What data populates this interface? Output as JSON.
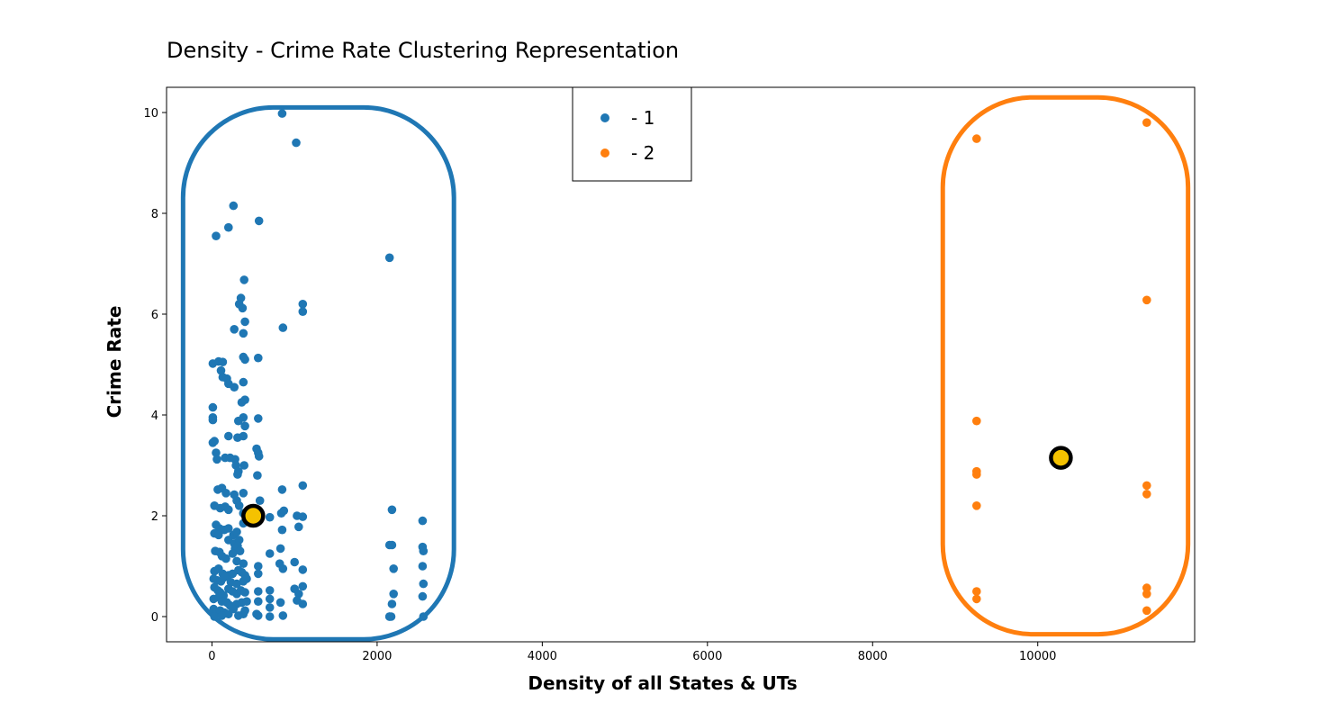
{
  "chart_data": {
    "type": "scatter",
    "title": "Density - Crime Rate Clustering Representation",
    "xlabel": "Density of all States & UTs",
    "ylabel": "Crime Rate",
    "xlim": [
      -550,
      11900
    ],
    "ylim": [
      -0.5,
      10.5
    ],
    "xticks": [
      0,
      2000,
      4000,
      6000,
      8000,
      10000
    ],
    "yticks": [
      0,
      2,
      4,
      6,
      8,
      10
    ],
    "grid": false,
    "legend_position": "top-center",
    "series": [
      {
        "name": "-  1",
        "color": "#1f77b4",
        "points": [
          [
            850,
            9.98
          ],
          [
            1020,
            9.4
          ],
          [
            2150,
            7.12
          ],
          [
            260,
            8.15
          ],
          [
            200,
            7.72
          ],
          [
            570,
            7.85
          ],
          [
            50,
            7.55
          ],
          [
            390,
            6.68
          ],
          [
            350,
            6.32
          ],
          [
            330,
            6.2
          ],
          [
            370,
            6.12
          ],
          [
            400,
            5.85
          ],
          [
            270,
            5.7
          ],
          [
            380,
            5.62
          ],
          [
            860,
            5.73
          ],
          [
            1100,
            6.2
          ],
          [
            1100,
            6.05
          ],
          [
            10,
            5.02
          ],
          [
            80,
            5.06
          ],
          [
            130,
            5.05
          ],
          [
            110,
            4.88
          ],
          [
            130,
            4.75
          ],
          [
            180,
            4.72
          ],
          [
            200,
            4.62
          ],
          [
            270,
            4.55
          ],
          [
            380,
            5.15
          ],
          [
            400,
            5.1
          ],
          [
            560,
            5.13
          ],
          [
            380,
            4.65
          ],
          [
            400,
            4.3
          ],
          [
            360,
            4.25
          ],
          [
            10,
            4.15
          ],
          [
            10,
            3.95
          ],
          [
            10,
            3.9
          ],
          [
            320,
            3.88
          ],
          [
            380,
            3.95
          ],
          [
            560,
            3.93
          ],
          [
            400,
            3.78
          ],
          [
            10,
            3.45
          ],
          [
            30,
            3.48
          ],
          [
            50,
            3.25
          ],
          [
            60,
            3.12
          ],
          [
            160,
            3.15
          ],
          [
            200,
            3.58
          ],
          [
            310,
            3.55
          ],
          [
            380,
            3.58
          ],
          [
            220,
            3.15
          ],
          [
            280,
            3.12
          ],
          [
            290,
            3.0
          ],
          [
            320,
            2.88
          ],
          [
            310,
            2.82
          ],
          [
            390,
            3.0
          ],
          [
            540,
            3.33
          ],
          [
            560,
            3.25
          ],
          [
            570,
            3.18
          ],
          [
            550,
            2.8
          ],
          [
            70,
            2.52
          ],
          [
            120,
            2.55
          ],
          [
            170,
            2.45
          ],
          [
            270,
            2.42
          ],
          [
            380,
            2.45
          ],
          [
            580,
            2.3
          ],
          [
            850,
            2.52
          ],
          [
            1100,
            2.6
          ],
          [
            30,
            2.2
          ],
          [
            100,
            2.15
          ],
          [
            160,
            2.18
          ],
          [
            200,
            2.12
          ],
          [
            300,
            2.3
          ],
          [
            330,
            2.2
          ],
          [
            380,
            2.05
          ],
          [
            450,
            2.1
          ],
          [
            700,
            1.97
          ],
          [
            840,
            2.05
          ],
          [
            870,
            2.1
          ],
          [
            1030,
            2.0
          ],
          [
            1100,
            1.98
          ],
          [
            1050,
            1.78
          ],
          [
            850,
            1.72
          ],
          [
            50,
            1.82
          ],
          [
            90,
            1.75
          ],
          [
            150,
            1.72
          ],
          [
            200,
            1.75
          ],
          [
            260,
            1.62
          ],
          [
            300,
            1.68
          ],
          [
            380,
            1.85
          ],
          [
            420,
            1.88
          ],
          [
            30,
            1.65
          ],
          [
            80,
            1.62
          ],
          [
            200,
            1.52
          ],
          [
            270,
            1.45
          ],
          [
            330,
            1.52
          ],
          [
            310,
            1.4
          ],
          [
            280,
            1.35
          ],
          [
            340,
            1.3
          ],
          [
            830,
            1.35
          ],
          [
            700,
            1.25
          ],
          [
            1000,
            1.08
          ],
          [
            820,
            1.05
          ],
          [
            860,
            0.95
          ],
          [
            1100,
            0.93
          ],
          [
            40,
            1.3
          ],
          [
            90,
            1.28
          ],
          [
            120,
            1.2
          ],
          [
            170,
            1.15
          ],
          [
            250,
            1.25
          ],
          [
            300,
            1.1
          ],
          [
            380,
            1.05
          ],
          [
            30,
            0.9
          ],
          [
            80,
            0.95
          ],
          [
            130,
            0.85
          ],
          [
            200,
            0.82
          ],
          [
            250,
            0.85
          ],
          [
            320,
            0.92
          ],
          [
            360,
            0.88
          ],
          [
            400,
            0.82
          ],
          [
            560,
            0.85
          ],
          [
            560,
            1.0
          ],
          [
            20,
            0.75
          ],
          [
            60,
            0.72
          ],
          [
            110,
            0.7
          ],
          [
            150,
            0.78
          ],
          [
            230,
            0.68
          ],
          [
            300,
            0.65
          ],
          [
            380,
            0.7
          ],
          [
            420,
            0.75
          ],
          [
            30,
            0.58
          ],
          [
            70,
            0.52
          ],
          [
            100,
            0.48
          ],
          [
            140,
            0.42
          ],
          [
            200,
            0.55
          ],
          [
            250,
            0.5
          ],
          [
            300,
            0.45
          ],
          [
            350,
            0.52
          ],
          [
            400,
            0.48
          ],
          [
            560,
            0.5
          ],
          [
            700,
            0.52
          ],
          [
            1000,
            0.55
          ],
          [
            1100,
            0.6
          ],
          [
            1050,
            0.45
          ],
          [
            20,
            0.35
          ],
          [
            80,
            0.38
          ],
          [
            120,
            0.3
          ],
          [
            180,
            0.28
          ],
          [
            220,
            0.22
          ],
          [
            300,
            0.25
          ],
          [
            360,
            0.28
          ],
          [
            420,
            0.3
          ],
          [
            560,
            0.3
          ],
          [
            700,
            0.35
          ],
          [
            830,
            0.28
          ],
          [
            1100,
            0.25
          ],
          [
            1030,
            0.32
          ],
          [
            20,
            0.15
          ],
          [
            60,
            0.1
          ],
          [
            100,
            0.12
          ],
          [
            150,
            0.08
          ],
          [
            200,
            0.05
          ],
          [
            260,
            0.15
          ],
          [
            320,
            0.02
          ],
          [
            380,
            0.05
          ],
          [
            560,
            0.02
          ],
          [
            700,
            0.0
          ],
          [
            860,
            0.02
          ],
          [
            700,
            0.18
          ],
          [
            540,
            0.05
          ],
          [
            30,
            0.0
          ],
          [
            120,
            0.02
          ],
          [
            400,
            0.12
          ],
          [
            2150,
            1.42
          ],
          [
            2180,
            1.42
          ],
          [
            2180,
            2.12
          ],
          [
            2200,
            0.95
          ],
          [
            2200,
            0.45
          ],
          [
            2180,
            0.25
          ],
          [
            2150,
            0.0
          ],
          [
            2170,
            0.0
          ],
          [
            2150,
            0.0
          ],
          [
            2550,
            1.9
          ],
          [
            2550,
            1.38
          ],
          [
            2560,
            1.3
          ],
          [
            2550,
            1.0
          ],
          [
            2560,
            0.65
          ],
          [
            2550,
            0.4
          ],
          [
            2560,
            0.0
          ]
        ]
      },
      {
        "name": "-  2",
        "color": "#ff7f0e",
        "points": [
          [
            9260,
            9.48
          ],
          [
            9260,
            3.88
          ],
          [
            9260,
            2.88
          ],
          [
            9260,
            2.82
          ],
          [
            9260,
            2.2
          ],
          [
            9260,
            0.5
          ],
          [
            9260,
            0.35
          ],
          [
            11320,
            9.8
          ],
          [
            11320,
            6.28
          ],
          [
            11320,
            2.6
          ],
          [
            11320,
            2.43
          ],
          [
            11320,
            0.57
          ],
          [
            11320,
            0.45
          ],
          [
            11320,
            0.12
          ]
        ]
      }
    ],
    "centroids": [
      {
        "x": 500,
        "y": 2.0,
        "color": "#f5c200"
      },
      {
        "x": 10280,
        "y": 3.15,
        "color": "#f5c200"
      }
    ],
    "cluster_outlines": [
      {
        "series": "-  1",
        "color": "#1f77b4",
        "x_range": [
          -350,
          2930
        ],
        "y_range": [
          -0.45,
          10.1
        ]
      },
      {
        "series": "-  2",
        "color": "#ff7f0e",
        "x_range": [
          8850,
          11820
        ],
        "y_range": [
          -0.35,
          10.3
        ]
      }
    ]
  }
}
